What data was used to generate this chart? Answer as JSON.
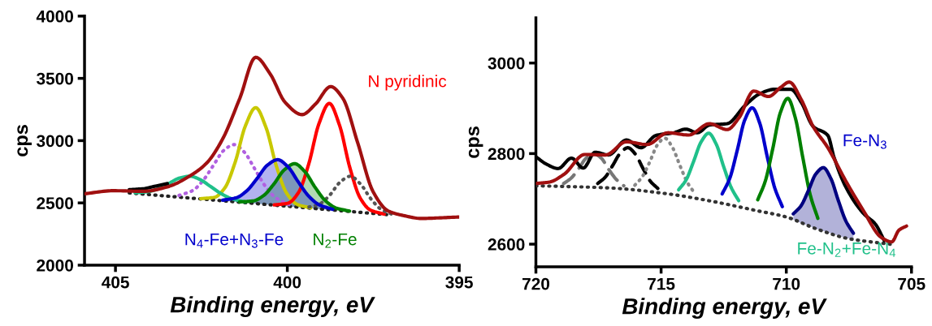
{
  "chart_data": [
    {
      "type": "line",
      "xlabel": "Binding energy, eV",
      "ylabel": "cps",
      "xlim": [
        405.9,
        395
      ],
      "ylim": [
        2000,
        4000
      ],
      "xticks": [
        405,
        400,
        395
      ],
      "yticks": [
        2000,
        2500,
        3000,
        3500,
        4000
      ],
      "series": [
        {
          "color": "#222222",
          "line_style": "dotted",
          "x": [
            404.6,
            396.97
          ],
          "values": [
            2580,
            2403
          ]
        },
        {
          "color": "#b060e0",
          "line_style": "dotted",
          "x": [
            403.15,
            402.75,
            402.45,
            402.15,
            401.85,
            401.55,
            401.25,
            400.95,
            400.65,
            400.35,
            399.95
          ],
          "values": [
            2560,
            2600,
            2680,
            2802,
            2921,
            2968,
            2907,
            2774,
            2638,
            2544,
            2486
          ]
        },
        {
          "color": "#c8c800",
          "line_style": "solid",
          "x": [
            402.52,
            402.12,
            401.82,
            401.52,
            401.22,
            400.92,
            400.62,
            400.32,
            400.02,
            399.72,
            399.32
          ],
          "values": [
            2534,
            2545,
            2620,
            2825,
            3119,
            3265,
            3105,
            2797,
            2578,
            2489,
            2460
          ]
        },
        {
          "color": "#20c08a",
          "line_style": "solid",
          "x": [
            404.43,
            404.03,
            403.73,
            403.43,
            403.13,
            402.83,
            402.53,
            402.23,
            401.93,
            401.63,
            401.23
          ],
          "values": [
            2581,
            2591,
            2617,
            2659,
            2700,
            2714,
            2686,
            2631,
            2575,
            2535,
            2507
          ]
        },
        {
          "name": "N pyridinic",
          "color": "#ff0000",
          "line_style": "solid",
          "x": [
            400.38,
            399.98,
            399.68,
            399.38,
            399.08,
            398.78,
            398.48,
            398.18,
            397.88,
            397.58,
            397.18
          ],
          "values": [
            2484,
            2498,
            2581,
            2810,
            3136,
            3299,
            3122,
            2782,
            2539,
            2442,
            2410
          ]
        },
        {
          "color": "#555555",
          "line_style": "dotted",
          "x": [
            399.37,
            399.07,
            398.77,
            398.47,
            398.17,
            397.87,
            397.57,
            397.27,
            396.97
          ],
          "values": [
            2467,
            2490,
            2561,
            2665,
            2714,
            2651,
            2533,
            2448,
            2411
          ]
        },
        {
          "name": "N$_{2}$-Fe",
          "color": "#008000",
          "line_style": "solid",
          "x": [
            401.39,
            400.99,
            400.69,
            400.39,
            400.09,
            399.79,
            399.49,
            399.19,
            398.89,
            398.59,
            398.19
          ],
          "values": [
            2508,
            2516,
            2559,
            2652,
            2765,
            2815,
            2751,
            2624,
            2517,
            2460,
            2434
          ],
          "lower": [
            2506,
            2497,
            2490,
            2483,
            2476,
            2469,
            2462,
            2455,
            2448,
            2441,
            2432
          ],
          "upper": [
            2508,
            2516,
            2559,
            2652,
            2765,
            2815,
            2751,
            2624,
            2517,
            2460,
            2434
          ]
        },
        {
          "name": "N$_{4}$-Fe+N$_{3}$-Fe",
          "color": "#0000cc",
          "line_style": "solid",
          "x": [
            401.88,
            401.48,
            401.18,
            400.88,
            400.58,
            400.28,
            399.98,
            399.68,
            399.38,
            399.08,
            398.68
          ],
          "values": [
            2522,
            2542,
            2597,
            2696,
            2803,
            2847,
            2789,
            2668,
            2555,
            2486,
            2448
          ],
          "lower": [
            2517,
            2508,
            2501,
            2494,
            2487,
            2480,
            2473,
            2466,
            2459,
            2452,
            2443
          ],
          "upper": [
            2522,
            2542,
            2597,
            2696,
            2803,
            2847,
            2789,
            2668,
            2555,
            2486,
            2448
          ]
        },
        {
          "color": "#000000",
          "line_style": "solid",
          "x": [
            404.6,
            404.19,
            403.8,
            403.49
          ],
          "values": [
            2606,
            2614,
            2637,
            2655
          ]
        },
        {
          "color": "#a01010",
          "line_style": "solid",
          "x": [
            405.9,
            405.07,
            404.19,
            403.49,
            402.78,
            402.34,
            401.9,
            401.38,
            400.92,
            400.5,
            400.06,
            399.57,
            399.18,
            398.74,
            398.39,
            397.95,
            397.51,
            397.07,
            396.63,
            396.1,
            395.57,
            395.0
          ],
          "values": [
            2573,
            2598,
            2593,
            2629,
            2726,
            2822,
            3004,
            3342,
            3669,
            3536,
            3306,
            3209,
            3294,
            3434,
            3342,
            2980,
            2593,
            2436,
            2399,
            2375,
            2380,
            2387
          ]
        }
      ]
    },
    {
      "type": "line",
      "xlabel": "Binding energy, eV",
      "ylabel": "cps",
      "xlim": [
        720,
        705
      ],
      "ylim": [
        2550,
        3100
      ],
      "xticks": [
        720,
        715,
        710,
        705
      ],
      "yticks": [
        2600,
        2800,
        3000
      ],
      "series": [
        {
          "color": "#333333",
          "line_style": "dotted",
          "x": [
            720,
            717,
            714.73,
            713,
            711.18,
            710,
            708.81,
            707.5,
            705.85
          ],
          "values": [
            2729,
            2724,
            2711,
            2695,
            2674,
            2660,
            2634,
            2612,
            2600
          ]
        },
        {
          "color": "#777777",
          "line_style": "dashed",
          "x": [
            718.89,
            718.59,
            718.29,
            717.99,
            717.69,
            717.39,
            717.09,
            716.79,
            716.49
          ],
          "values": [
            2734,
            2746,
            2767,
            2790,
            2800,
            2790,
            2765,
            2743,
            2729
          ]
        },
        {
          "color": "#000000",
          "line_style": "dashed",
          "x": [
            717.53,
            717.23,
            716.93,
            716.63,
            716.33,
            716.03,
            715.73,
            715.43,
            715.13
          ],
          "values": [
            2734,
            2748,
            2774,
            2801,
            2813,
            2799,
            2768,
            2739,
            2723
          ]
        },
        {
          "color": "#888888",
          "line_style": "dotted",
          "x": [
            716.05,
            715.75,
            715.45,
            715.15,
            714.85,
            714.55,
            714.25,
            713.95,
            713.65
          ],
          "values": [
            2730,
            2749,
            2782,
            2819,
            2834,
            2814,
            2774,
            2736,
            2712
          ]
        },
        {
          "name": "Fe-N$_{2}$+Fe-N$_{4}$",
          "color": "#20c08a",
          "line_style": "solid",
          "x": [
            714.3,
            714.0,
            713.7,
            713.4,
            713.1,
            712.8,
            712.5,
            712.2,
            711.9
          ],
          "values": [
            2720,
            2742,
            2783,
            2826,
            2845,
            2821,
            2771,
            2725,
            2696
          ]
        },
        {
          "name": "Fe-N$_{3}$",
          "color": "#0000cc",
          "line_style": "solid",
          "x": [
            712.56,
            712.26,
            711.96,
            711.66,
            711.36,
            711.06,
            710.76,
            710.46,
            710.16
          ],
          "values": [
            2711,
            2745,
            2807,
            2874,
            2901,
            2867,
            2793,
            2724,
            2683
          ]
        },
        {
          "color": "#008000",
          "line_style": "solid",
          "x": [
            711.14,
            710.84,
            710.54,
            710.24,
            709.94,
            709.64,
            709.34,
            709.04,
            708.74
          ],
          "values": [
            2698,
            2739,
            2811,
            2890,
            2922,
            2879,
            2791,
            2708,
            2657
          ]
        },
        {
          "color": "#000080",
          "line_style": "solid",
          "x": [
            709.72,
            709.42,
            709.12,
            708.82,
            708.52,
            708.22,
            707.92,
            707.62,
            707.32
          ],
          "values": [
            2667,
            2684,
            2718,
            2755,
            2769,
            2745,
            2696,
            2651,
            2624
          ],
          "lower": [
            2654,
            2647,
            2641,
            2634,
            2629,
            2624,
            2619,
            2614,
            2611
          ],
          "upper": [
            2667,
            2684,
            2718,
            2755,
            2769,
            2745,
            2696,
            2651,
            2624
          ]
        },
        {
          "color": "#000000",
          "line_style": "solid",
          "x": [
            720,
            719.59,
            719.11,
            718.58,
            718.11,
            717.63,
            717.1,
            716.39,
            715.8,
            715.21,
            714.5,
            714.02,
            713.55,
            713.07,
            712.36,
            711.65,
            711.06,
            710.47,
            709.82,
            709.4,
            708.93,
            708.34,
            708.1,
            707.63,
            706.92,
            706.44,
            706.09
          ],
          "values": [
            2793,
            2777,
            2767,
            2790,
            2768,
            2803,
            2797,
            2830,
            2813,
            2840,
            2846,
            2854,
            2846,
            2863,
            2866,
            2906,
            2932,
            2942,
            2942,
            2913,
            2860,
            2840,
            2793,
            2727,
            2668,
            2644,
            2608
          ]
        },
        {
          "color": "#a01010",
          "line_style": "solid",
          "x": [
            720,
            719.47,
            718.88,
            718.05,
            717.22,
            716.39,
            715.56,
            714.73,
            713.9,
            713.07,
            712.36,
            711.89,
            711.3,
            710.71,
            710.23,
            709.88,
            709.4,
            708.93,
            708.34,
            707.63,
            706.92,
            706.21,
            705.79,
            705.5,
            705.2
          ],
          "values": [
            2734,
            2737,
            2754,
            2798,
            2797,
            2826,
            2820,
            2846,
            2841,
            2866,
            2853,
            2879,
            2938,
            2926,
            2946,
            2958,
            2919,
            2860,
            2813,
            2740,
            2674,
            2615,
            2605,
            2631,
            2640
          ]
        }
      ]
    }
  ]
}
